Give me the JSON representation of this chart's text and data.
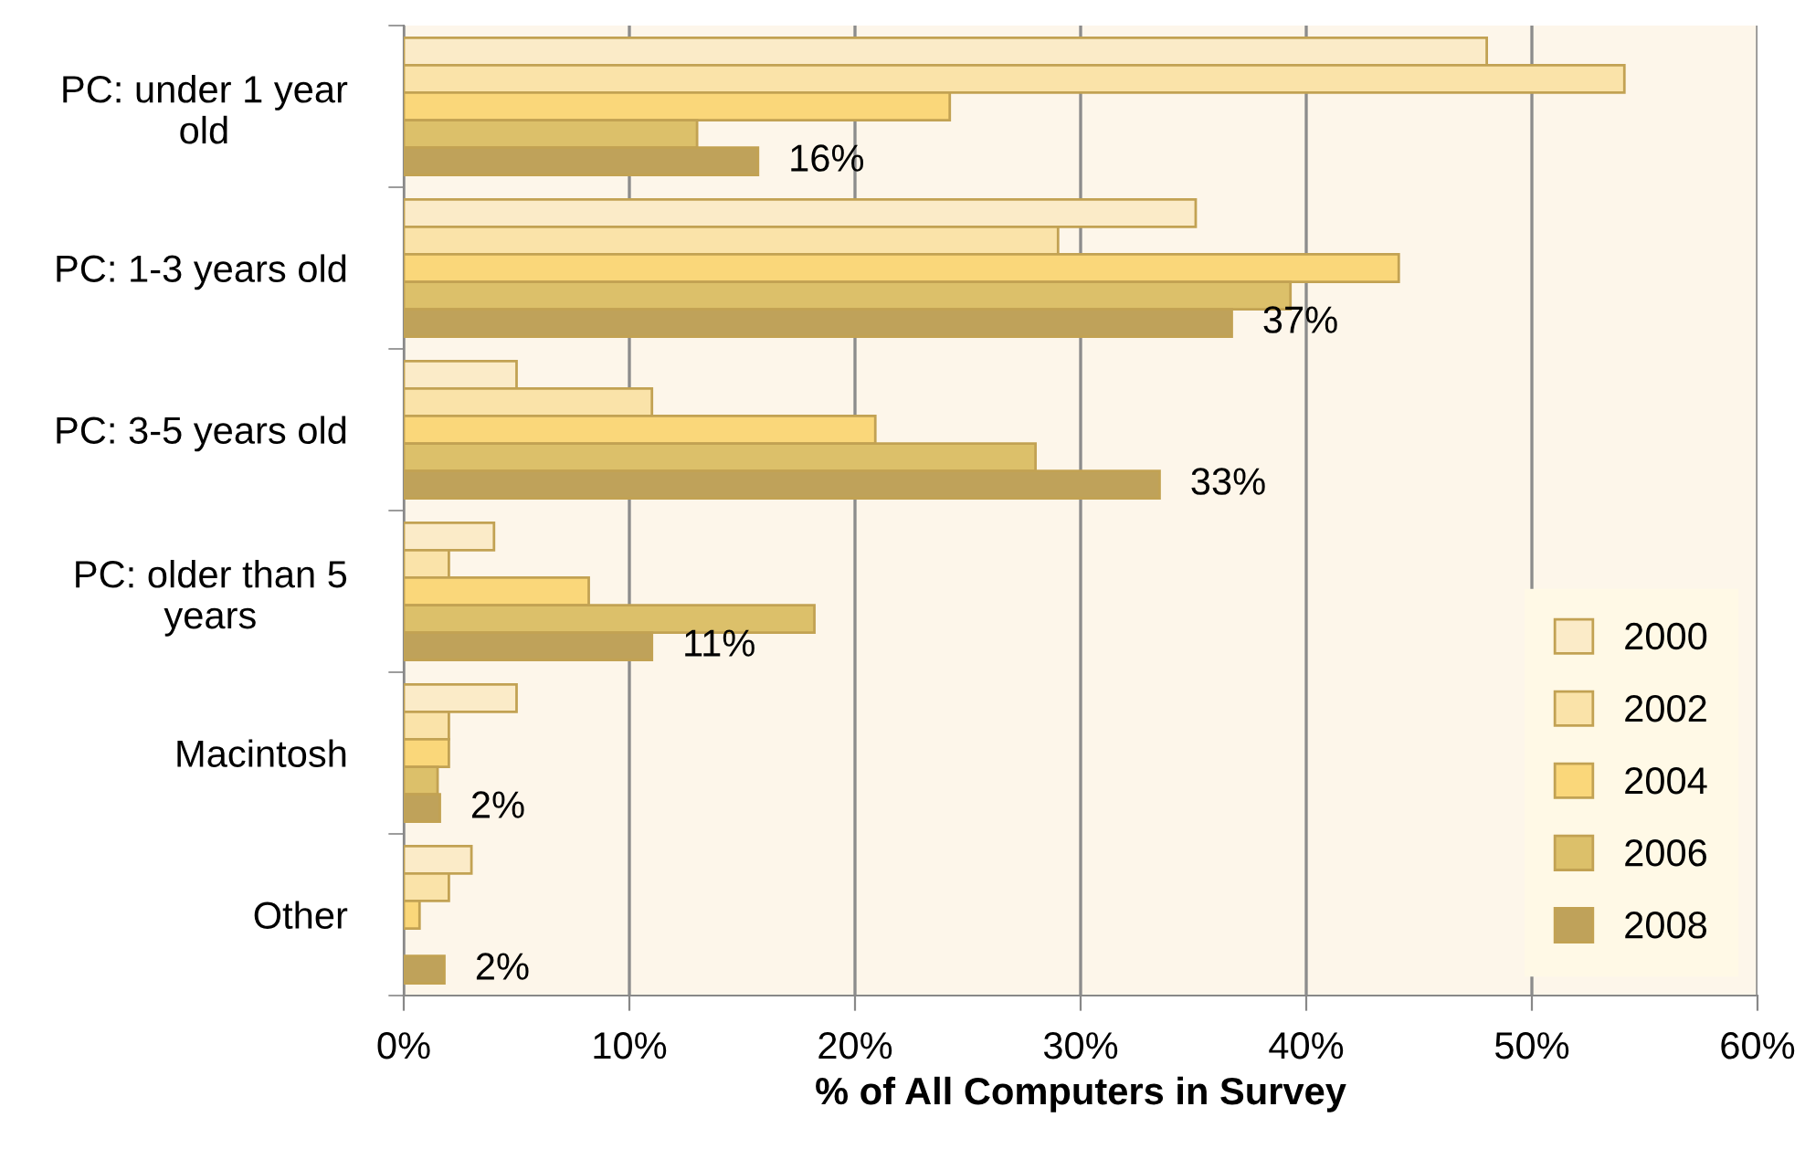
{
  "chart_data": {
    "type": "bar",
    "orientation": "horizontal",
    "xlabel": "% of All Computers in Survey",
    "categories": [
      "PC: under 1 year\nold",
      "PC: 1-3 years old",
      "PC: 3-5 years old",
      "PC: older than 5\nyears",
      "Macintosh",
      "Other"
    ],
    "series": [
      {
        "name": "2000",
        "color": "#fbebc8",
        "values": [
          48.0,
          35.1,
          5.0,
          4.0,
          5.0,
          3.0
        ]
      },
      {
        "name": "2002",
        "color": "#fae3a9",
        "values": [
          54.1,
          29.0,
          11.0,
          2.0,
          2.0,
          2.0
        ]
      },
      {
        "name": "2004",
        "color": "#fad77a",
        "values": [
          24.2,
          44.1,
          20.9,
          8.2,
          2.0,
          0.7
        ]
      },
      {
        "name": "2006",
        "color": "#dcc06a",
        "values": [
          13.0,
          39.3,
          28.0,
          18.2,
          1.5,
          null
        ]
      },
      {
        "name": "2008",
        "color": "#bfa25a",
        "values": [
          15.7,
          36.7,
          33.5,
          11.0,
          1.6,
          1.8
        ],
        "value_labels": [
          "16%",
          "37%",
          "33%",
          "11%",
          "2%",
          "2%"
        ]
      }
    ],
    "xlim": [
      0,
      60
    ],
    "xticks": [
      {
        "value": 0,
        "label": "0%"
      },
      {
        "value": 10,
        "label": "10%"
      },
      {
        "value": 20,
        "label": "20%"
      },
      {
        "value": 30,
        "label": "30%"
      },
      {
        "value": 40,
        "label": "40%"
      },
      {
        "value": 50,
        "label": "50%"
      },
      {
        "value": 60,
        "label": "60%"
      }
    ],
    "grid": "x",
    "legend": "bottom right"
  }
}
